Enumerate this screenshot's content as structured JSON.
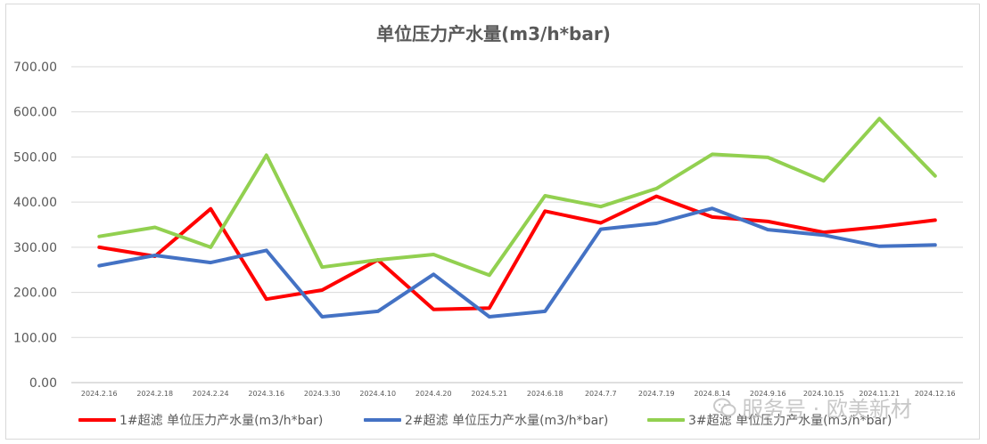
{
  "chart_data": {
    "type": "line",
    "title": "单位压力产水量(m3/h*bar)",
    "xlabel": "",
    "ylabel": "",
    "ylim": [
      0,
      700
    ],
    "yticks": [
      0,
      100,
      200,
      300,
      400,
      500,
      600,
      700
    ],
    "ytick_labels": [
      "0.00",
      "100.00",
      "200.00",
      "300.00",
      "400.00",
      "500.00",
      "600.00",
      "700.00"
    ],
    "grid": true,
    "legend_position": "bottom",
    "categories": [
      "2024.2.16",
      "2024.2.18",
      "2024.2.24",
      "2024.3.16",
      "2024.3.30",
      "2024.4.10",
      "2024.4.20",
      "2024.5.21",
      "2024.6.18",
      "2024.7.7",
      "2024.7.19",
      "2024.8.14",
      "2024.9.16",
      "2024.10.15",
      "2024.11.21",
      "2024.12.16"
    ],
    "series": [
      {
        "name": "1#超滤 单位压力产水量(m3/h*bar)",
        "color": "#ff0000",
        "values": [
          300,
          280,
          385,
          185,
          205,
          272,
          162,
          165,
          380,
          354,
          413,
          367,
          357,
          333,
          345,
          360
        ]
      },
      {
        "name": "2#超滤 单位压力产水量(m3/h*bar)",
        "color": "#4472c4",
        "values": [
          259,
          282,
          266,
          293,
          146,
          158,
          240,
          146,
          158,
          340,
          353,
          386,
          339,
          327,
          302,
          305
        ]
      },
      {
        "name": "3#超滤 单位压力产水量(m3/h*bar)",
        "color": "#92d050",
        "values": [
          324,
          344,
          300,
          504,
          256,
          272,
          284,
          238,
          414,
          390,
          430,
          506,
          499,
          447,
          585,
          458
        ]
      }
    ]
  },
  "watermark": {
    "text": "服务号 · 欧美新材",
    "icon": "wechat-icon"
  }
}
